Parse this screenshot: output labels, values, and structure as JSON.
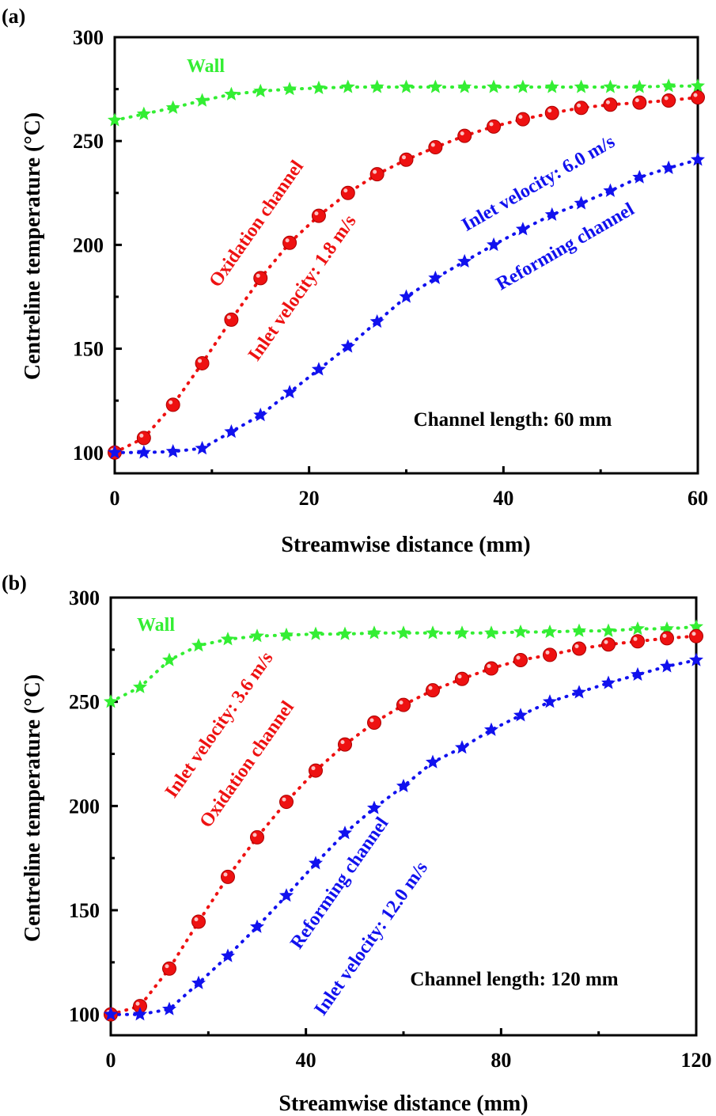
{
  "chart_data": [
    {
      "type": "line",
      "panel_label": "(a)",
      "xlabel": "Streamwise distance (mm)",
      "ylabel": "Centreline temperature (°C)",
      "xlim": [
        0,
        60
      ],
      "ylim": [
        90,
        300
      ],
      "xticks": [
        0,
        20,
        40,
        60
      ],
      "yticks": [
        100,
        150,
        200,
        250,
        300
      ],
      "grid": false,
      "annotations": {
        "wall": "Wall",
        "oxidation_channel": "Oxidation channel",
        "oxidation_velocity": "Inlet velocity: 1.8 m/s",
        "reforming_velocity": "Inlet velocity: 6.0 m/s",
        "reforming_channel": "Reforming channel",
        "channel_length": "Channel length: 60 mm"
      },
      "series": [
        {
          "key": "wall",
          "color": "#33ee33",
          "marker": "star",
          "x": [
            0,
            3,
            6,
            9,
            12,
            15,
            18,
            21,
            24,
            27,
            30,
            33,
            36,
            39,
            42,
            45,
            48,
            51,
            54,
            57,
            60
          ],
          "y": [
            260,
            263,
            266,
            269.5,
            272.5,
            274,
            275,
            275.5,
            276,
            276,
            276,
            276,
            276,
            276,
            276,
            276,
            276,
            276,
            276,
            276.5,
            276.5
          ]
        },
        {
          "key": "oxidation",
          "color": "#ee1111",
          "marker": "circle",
          "x": [
            0,
            3,
            6,
            9,
            12,
            15,
            18,
            21,
            24,
            27,
            30,
            33,
            36,
            39,
            42,
            45,
            48,
            51,
            54,
            57,
            60
          ],
          "y": [
            100,
            107,
            123,
            143,
            164,
            184,
            201,
            214,
            225,
            234,
            241,
            247,
            252.5,
            257,
            260.5,
            263.5,
            266,
            267.5,
            268.5,
            269.5,
            271
          ]
        },
        {
          "key": "reforming",
          "color": "#1111ee",
          "marker": "star",
          "x": [
            0,
            3,
            6,
            9,
            12,
            15,
            18,
            21,
            24,
            27,
            30,
            33,
            36,
            39,
            42,
            45,
            48,
            51,
            54,
            57,
            60
          ],
          "y": [
            100,
            100,
            100.5,
            102,
            110,
            118,
            129,
            140,
            151,
            163,
            175,
            184,
            192,
            200,
            207.5,
            214.5,
            220,
            226,
            232.5,
            237,
            241
          ]
        }
      ]
    },
    {
      "type": "line",
      "panel_label": "(b)",
      "xlabel": "Streamwise distance (mm)",
      "ylabel": "Centreline temperature (°C)",
      "xlim": [
        0,
        120
      ],
      "ylim": [
        90,
        300
      ],
      "xticks": [
        0,
        40,
        80,
        120
      ],
      "yticks": [
        100,
        150,
        200,
        250,
        300
      ],
      "grid": false,
      "annotations": {
        "wall": "Wall",
        "oxidation_velocity": "Inlet velocity: 3.6 m/s",
        "oxidation_channel": "Oxidation channel",
        "reforming_channel": "Reforming channel",
        "reforming_velocity": "Inlet velocity: 12.0 m/s",
        "channel_length": "Channel length: 120 mm"
      },
      "series": [
        {
          "key": "wall",
          "color": "#33ee33",
          "marker": "star",
          "x": [
            0,
            6,
            12,
            18,
            24,
            30,
            36,
            42,
            48,
            54,
            60,
            66,
            72,
            78,
            84,
            90,
            96,
            102,
            108,
            114,
            120
          ],
          "y": [
            250,
            257,
            270,
            277,
            280,
            281.5,
            282,
            282.5,
            282.5,
            283,
            283,
            283,
            283,
            283,
            283.5,
            283.5,
            284,
            284,
            285,
            285,
            286
          ]
        },
        {
          "key": "oxidation",
          "color": "#ee1111",
          "marker": "circle",
          "x": [
            0,
            6,
            12,
            18,
            24,
            30,
            36,
            42,
            48,
            54,
            60,
            66,
            72,
            78,
            84,
            90,
            96,
            102,
            108,
            114,
            120
          ],
          "y": [
            100,
            104,
            122,
            144.5,
            166,
            185,
            202,
            217,
            229.5,
            240,
            248.5,
            255.5,
            261,
            266,
            270,
            272.5,
            275.5,
            277.5,
            279,
            280.5,
            281.5
          ]
        },
        {
          "key": "reforming",
          "color": "#1111ee",
          "marker": "star",
          "x": [
            0,
            6,
            12,
            18,
            24,
            30,
            36,
            42,
            48,
            54,
            60,
            66,
            72,
            78,
            84,
            90,
            96,
            102,
            108,
            114,
            120
          ],
          "y": [
            100,
            100,
            102.5,
            115,
            128,
            142,
            157,
            172.5,
            187,
            199,
            209.5,
            221,
            228,
            236.5,
            243.5,
            250,
            254.5,
            259,
            263,
            267,
            270
          ]
        }
      ]
    }
  ]
}
